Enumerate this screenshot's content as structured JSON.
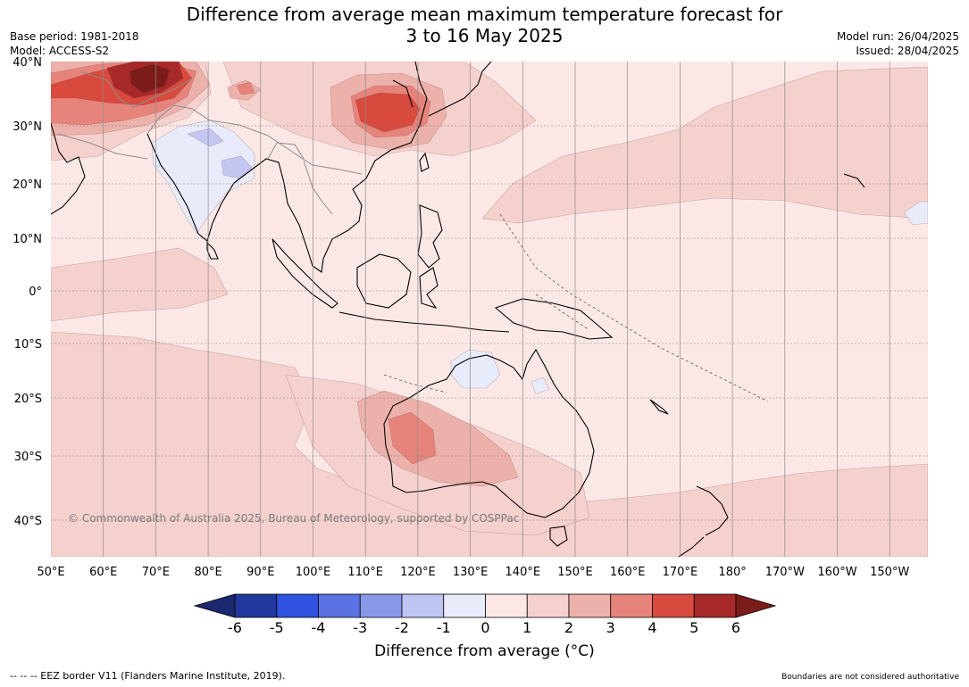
{
  "title": {
    "line1": "Difference from average mean maximum temperature forecast for",
    "line2": "3 to 16 May 2025"
  },
  "meta_left": {
    "base_period": "Base period: 1981-2018",
    "model": "Model: ACCESS-S2"
  },
  "meta_right": {
    "model_run": "Model run: 26/04/2025",
    "issued": "Issued: 28/04/2025"
  },
  "map": {
    "lat_labels": [
      "40°N",
      "30°N",
      "20°N",
      "10°N",
      "0°",
      "10°S",
      "20°S",
      "30°S",
      "40°S"
    ],
    "lon_labels": [
      "50°E",
      "60°E",
      "70°E",
      "80°E",
      "90°E",
      "100°E",
      "110°E",
      "120°E",
      "130°E",
      "140°E",
      "150°E",
      "160°E",
      "170°E",
      "180°",
      "170°W",
      "160°W",
      "150°W"
    ],
    "copyright": "© Commonwealth of Australia 2025, Bureau of Meteorology, supported by COSPPac",
    "colors": {
      "ocean_base": "#fbe8e6",
      "anomaly_1_2": "#f5d1ce",
      "anomaly_2_3": "#edb1ab",
      "anomaly_3_4": "#e6847b",
      "anomaly_4_5": "#d84a3e",
      "anomaly_5_6": "#a8292a",
      "anomaly_gt6": "#7c1c1a",
      "anomaly_m1_0": "#e8ebfa",
      "anomaly_m2_m1": "#c3c8f3"
    }
  },
  "colorbar": {
    "ticks": [
      "-6",
      "-5",
      "-4",
      "-3",
      "-2",
      "-1",
      "0",
      "1",
      "2",
      "3",
      "4",
      "5",
      "6"
    ],
    "colors": [
      "#21389e",
      "#2f52e0",
      "#5a72e3",
      "#8899ea",
      "#bfc5f3",
      "#e8ebfa",
      "#fbe8e6",
      "#f5d1ce",
      "#edb1ab",
      "#e6847b",
      "#d84a3e",
      "#a8292a"
    ],
    "under_color": "#1b2a70",
    "over_color": "#7c1c1a",
    "title": "Difference from average (°C)"
  },
  "footer": {
    "left": "--  --  -- EEZ border V11 (Flanders Marine Institute, 2019).",
    "right": "Boundaries are not considered authoritative"
  }
}
